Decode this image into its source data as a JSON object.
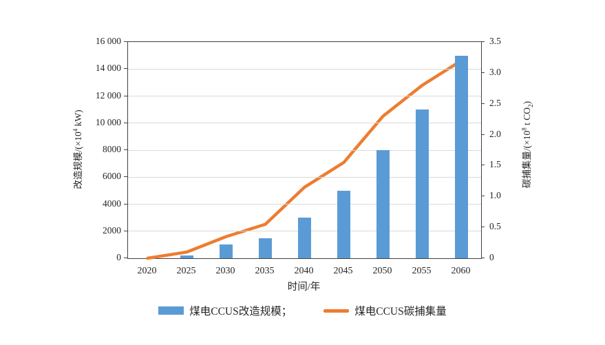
{
  "colors": {
    "bar": "#5b9bd5",
    "line": "#ed7d31",
    "grid": "#d9d9d9",
    "axis": "#404040",
    "text": "#262626"
  },
  "chart_data": {
    "type": "bar+line combo",
    "categories": [
      "2020",
      "2025",
      "2030",
      "2035",
      "2040",
      "2045",
      "2050",
      "2055",
      "2060"
    ],
    "series": [
      {
        "name": "煤电CCUS改造规模",
        "type": "bar",
        "axis": "left",
        "color": "#5b9bd5",
        "values": [
          0,
          200,
          1000,
          1500,
          3000,
          5000,
          8000,
          11000,
          15000
        ]
      },
      {
        "name": "煤电CCUS碳捕集量",
        "type": "line",
        "axis": "right",
        "color": "#ed7d31",
        "values": [
          0,
          0.1,
          0.35,
          0.55,
          1.15,
          1.55,
          2.3,
          2.8,
          3.2
        ]
      }
    ],
    "x_axis": {
      "title": "时间/年"
    },
    "left_axis": {
      "title": "改造规模/(×10⁴ kW)",
      "title_prefix": "改造规模/(×10",
      "title_sup": "4",
      "title_suffix": " kW)",
      "min": 0,
      "max": 16000,
      "ticks": [
        0,
        2000,
        4000,
        6000,
        8000,
        10000,
        12000,
        14000,
        16000
      ],
      "tick_labels": [
        "0",
        "2000",
        "4000",
        "6000",
        "8000",
        "10 000",
        "12 000",
        "14 000",
        "16 000"
      ]
    },
    "right_axis": {
      "title": "碳捕集量/(×10⁸ t CO₂)",
      "title_prefix": "碳捕集量/(×10",
      "title_sup": "8",
      "title_mid": " t CO",
      "title_sub": "2",
      "title_suffix": ")",
      "min": 0,
      "max": 3.5,
      "ticks": [
        0,
        0.5,
        1.0,
        1.5,
        2.0,
        2.5,
        3.0,
        3.5
      ],
      "tick_labels": [
        "0",
        "0.5",
        "1.0",
        "1.5",
        "2.0",
        "2.5",
        "3.0",
        "3.5"
      ]
    },
    "grid": true,
    "legend_position": "bottom",
    "legend": [
      {
        "label": "煤电CCUS改造规模；",
        "swatch": "bar"
      },
      {
        "label": "煤电CCUS碳捕集量",
        "swatch": "line"
      }
    ]
  }
}
